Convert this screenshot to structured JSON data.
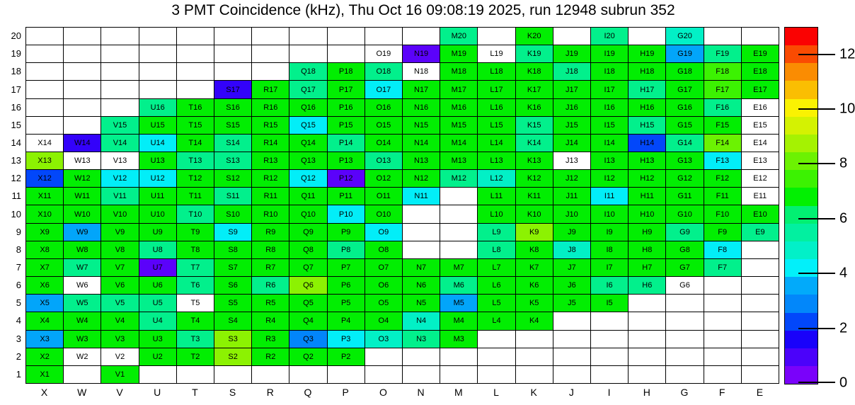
{
  "title": "3 PMT Coincidence (kHz), Thu Oct 16 09:08:19 2025, run 12948 subrun 352",
  "chart_data": {
    "type": "heatmap",
    "title": "3 PMT Coincidence (kHz), Thu Oct 16 09:08:19 2025, run 12948 subrun 352",
    "x_categories": [
      "X",
      "W",
      "V",
      "U",
      "T",
      "S",
      "R",
      "Q",
      "P",
      "O",
      "N",
      "M",
      "L",
      "K",
      "J",
      "I",
      "H",
      "G",
      "F",
      "E"
    ],
    "y_categories_top_to_bottom": [
      "20",
      "19",
      "18",
      "17",
      "16",
      "15",
      "14",
      "13",
      "12",
      "11",
      "10",
      "9",
      "8",
      "7",
      "6",
      "5",
      "4",
      "3",
      "2",
      "1"
    ],
    "colorbar": {
      "min": 0,
      "max": 13,
      "ticks": [
        0,
        2,
        4,
        6,
        8,
        10,
        12
      ],
      "colors_bottom_to_top": [
        "#7a02fa",
        "#4b02fa",
        "#1902fa",
        "#0247fa",
        "#0287fa",
        "#02aafa",
        "#02f0fa",
        "#02f0c8",
        "#02f0a0",
        "#02f072",
        "#02f002",
        "#3cf202",
        "#6cf202",
        "#a5f202",
        "#d4f202",
        "#faf202",
        "#fabe02",
        "#fa8c02",
        "#fa4b02",
        "#fa0202"
      ]
    },
    "cell_colors": {
      "G": "#02ee02",
      "SG": "#02f08c",
      "TQ": "#02f0c6",
      "CY": "#02eef8",
      "SKY": "#02a5fa",
      "DB": "#0285fa",
      "BL": "#0247fa",
      "BV": "#3302fa",
      "VI": "#5b02fa",
      "CH1": "#3cf202",
      "CH2": "#6cf202",
      "CH3": "#8cf202"
    },
    "color_value_map_khz": {
      "VI": 1.0,
      "BV": 1.6,
      "BL": 2.4,
      "DB": 3.1,
      "SKY": 3.6,
      "CY": 4.3,
      "TQ": 4.9,
      "SG": 5.8,
      "G": 6.8,
      "CH1": 8.1,
      "CH2": 8.7,
      "CH3": 9.3
    },
    "rows_top_to_bottom": [
      [
        "",
        "",
        "",
        "",
        "",
        "",
        "",
        "",
        "",
        "",
        "",
        "M20|SG",
        "",
        "K20|G",
        "",
        "I20|SG",
        "",
        "G20|TQ",
        "",
        ""
      ],
      [
        "",
        "",
        "",
        "",
        "",
        "",
        "",
        "",
        "",
        "O19",
        "N19|VI",
        "M19|G",
        "L19",
        "K19|SG",
        "J19|G",
        "I19|G",
        "H19|G",
        "G19|SKY",
        "F19|SG",
        "E19|G"
      ],
      [
        "",
        "",
        "",
        "",
        "",
        "",
        "",
        "Q18|SG",
        "P18|G",
        "O18|SG",
        "N18",
        "M18|G",
        "L18|G",
        "K18|G",
        "J18|SG",
        "I18|G",
        "H18|G",
        "G18|G",
        "F18|CH1",
        "E18|G"
      ],
      [
        "",
        "",
        "",
        "",
        "",
        "S17|BV",
        "R17|G",
        "Q17|SG",
        "P17|G",
        "O17|CY",
        "N17|G",
        "M17|G",
        "L17|G",
        "K17|G",
        "J17|G",
        "I17|G",
        "H17|SG",
        "G17|G",
        "F17|CH1",
        "E17|G"
      ],
      [
        "",
        "",
        "",
        "U16|SG",
        "T16|G",
        "S16|G",
        "R16|G",
        "Q16|G",
        "P16|G",
        "O16|G",
        "N16|G",
        "M16|G",
        "L16|G",
        "K16|G",
        "J16|G",
        "I16|G",
        "H16|G",
        "G16|G",
        "F16|SG",
        "E16"
      ],
      [
        "",
        "",
        "V15|SG",
        "U15|G",
        "T15|G",
        "S15|G",
        "R15|G",
        "Q15|CY",
        "P15|G",
        "O15|G",
        "N15|G",
        "M15|G",
        "L15|G",
        "K15|SG",
        "J15|G",
        "I15|G",
        "H15|SG",
        "G15|G",
        "F15|G",
        "E15"
      ],
      [
        "X14",
        "W14|BV",
        "V14|SG",
        "U14|CY",
        "T14|G",
        "S14|SG",
        "R14|G",
        "Q14|G",
        "P14|SG",
        "O14|G",
        "N14|G",
        "M14|G",
        "L14|G",
        "K14|SG",
        "J14|G",
        "I14|G",
        "H14|BL",
        "G14|SG",
        "F14|CH2",
        "E14"
      ],
      [
        "X13|CH3",
        "W13",
        "V13",
        "U13|G",
        "T13|SG",
        "S13|SG",
        "R13|G",
        "Q13|G",
        "P13|G",
        "O13|SG",
        "N13|G",
        "M13|G",
        "L13|G",
        "K13|G",
        "J13",
        "I13|G",
        "H13|G",
        "G13|G",
        "F13|CY",
        "E13"
      ],
      [
        "X12|BL",
        "W12|G",
        "V12|CY",
        "U12|CY",
        "T12|G",
        "S12|G",
        "R12|G",
        "Q12|CY",
        "P12|VI",
        "O12|G",
        "N12|G",
        "M12|SG",
        "L12|TQ",
        "K12|G",
        "J12|G",
        "I12|G",
        "H12|G",
        "G12|G",
        "F12|G",
        "E12"
      ],
      [
        "X11|G",
        "W11|G",
        "V11|SG",
        "U11|G",
        "T11|G",
        "S11|SG",
        "R11|G",
        "Q11|G",
        "P11|G",
        "O11|G",
        "N11|CY",
        "",
        "L11|G",
        "K11|G",
        "J11|G",
        "I11|CY",
        "H11|G",
        "G11|G",
        "F11|G",
        "E11"
      ],
      [
        "X10|G",
        "W10|G",
        "V10|G",
        "U10|G",
        "T10|SG",
        "S10|G",
        "R10|G",
        "Q10|G",
        "P10|CY",
        "O10|G",
        "",
        "",
        "L10|G",
        "K10|G",
        "J10|G",
        "I10|G",
        "H10|G",
        "G10|G",
        "F10|G",
        "E10|G"
      ],
      [
        "X9|G",
        "W9|SKY",
        "V9|G",
        "U9|G",
        "T9|G",
        "S9|CY",
        "R9|G",
        "Q9|G",
        "P9|G",
        "O9|CY",
        "",
        "",
        "L9|SG",
        "K9|CH3",
        "J9|G",
        "I9|G",
        "H9|G",
        "G9|SG",
        "F9|G",
        "E9|SG"
      ],
      [
        "X8|G",
        "W8|G",
        "V8|G",
        "U8|SG",
        "T8|G",
        "S8|G",
        "R8|G",
        "Q8|G",
        "P8|SG",
        "O8|G",
        "",
        "",
        "L8|SG",
        "K8|G",
        "J8|TQ",
        "I8|G",
        "H8|G",
        "G8|G",
        "F8|CY",
        ""
      ],
      [
        "X7|G",
        "W7|SG",
        "V7|G",
        "U7|VI",
        "T7|SG",
        "S7|G",
        "R7|G",
        "Q7|G",
        "P7|G",
        "O7|G",
        "N7|G",
        "M7|G",
        "L7|G",
        "K7|G",
        "J7|G",
        "I7|G",
        "H7|G",
        "G7|G",
        "F7|SG",
        ""
      ],
      [
        "X6|G",
        "W6",
        "V6|G",
        "U6|G",
        "T6|SG",
        "S6|G",
        "R6|SG",
        "Q6|CH3",
        "P6|G",
        "O6|G",
        "N6|G",
        "M6|SG",
        "L6|G",
        "K6|G",
        "J6|G",
        "I6|SG",
        "H6|SG",
        "G6",
        "",
        ""
      ],
      [
        "X5|SKY",
        "W5|SG",
        "V5|SG",
        "U5|SG",
        "T5",
        "S5|G",
        "R5|G",
        "Q5|G",
        "P5|G",
        "O5|G",
        "N5|G",
        "M5|SKY",
        "L5|G",
        "K5|G",
        "J5|G",
        "I5|G",
        "",
        "",
        "",
        ""
      ],
      [
        "X4|G",
        "W4|G",
        "V4|G",
        "U4|SG",
        "T4|G",
        "S4|G",
        "R4|G",
        "Q4|G",
        "P4|G",
        "O4|G",
        "N4|TQ",
        "M4|G",
        "L4|G",
        "K4|G",
        "",
        "",
        "",
        "",
        "",
        ""
      ],
      [
        "X3|SKY",
        "W3|G",
        "V3|G",
        "U3|G",
        "T3|SG",
        "S3|CH3",
        "R3|G",
        "Q3|DB",
        "P3|CY",
        "O3|TQ",
        "N3|SG",
        "M3|G",
        "",
        "",
        "",
        "",
        "",
        "",
        "",
        ""
      ],
      [
        "X2|G",
        "W2",
        "V2",
        "U2|G",
        "T2|G",
        "S2|CH3",
        "R2|G",
        "Q2|G",
        "P2|G",
        "",
        "",
        "",
        "",
        "",
        "",
        "",
        "",
        "",
        "",
        ""
      ],
      [
        "X1|G",
        "",
        "V1|G",
        "",
        "",
        "",
        "",
        "",
        "",
        "",
        "",
        "",
        "",
        "",
        "",
        "",
        "",
        "",
        "",
        ""
      ]
    ]
  }
}
